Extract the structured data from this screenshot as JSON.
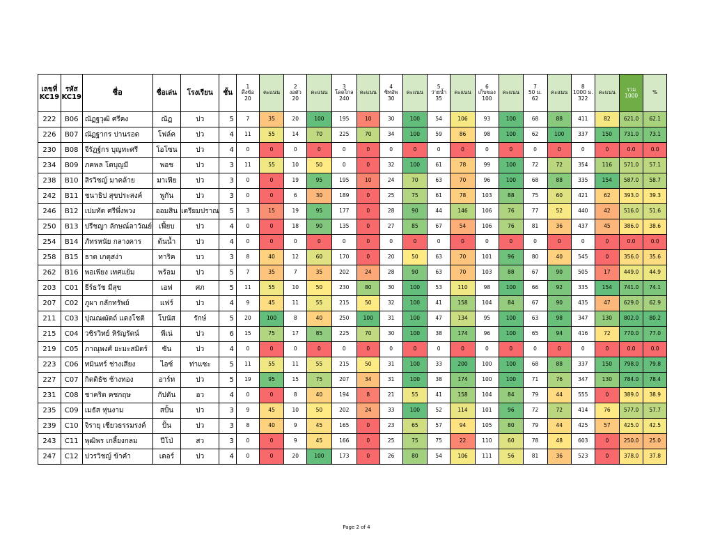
{
  "header": {
    "id": [
      "เลขที่",
      "KC19"
    ],
    "code": [
      "รหัส",
      "KC19"
    ],
    "name": "ชื่อ",
    "nickname": "ชื่อเล่น",
    "school": "โรงเรียน",
    "grade": "ชั้น",
    "events": [
      {
        "no": "1",
        "name": "ดึงข้อ",
        "max": "20"
      },
      {
        "no": "2",
        "name": "งอตัว",
        "max": "20"
      },
      {
        "no": "3",
        "name": "โดดไกล",
        "max": "240"
      },
      {
        "no": "4",
        "name": "ซิทอัพ",
        "max": "30"
      },
      {
        "no": "5",
        "name": "ว่ายน้ำ",
        "max": "35"
      },
      {
        "no": "6",
        "name": "เก็บของ",
        "max": "100"
      },
      {
        "no": "7",
        "name": "50 ม.",
        "max": "62"
      },
      {
        "no": "8",
        "name": "1000 ม.",
        "max": "322"
      }
    ],
    "score_label": "คะแนน",
    "total": [
      "รวม",
      "1000"
    ],
    "percent": "%"
  },
  "rows": [
    {
      "id": "222",
      "code": "B06",
      "name": "ณัฏฐวุฒิ  ศรีคง",
      "nick": "ณัฏ",
      "school": "ปว",
      "grade": "5",
      "raw": [
        "7",
        "20",
        "195",
        "30",
        "54",
        "93",
        "68",
        "411"
      ],
      "scores": [
        "35",
        "100",
        "10",
        "100",
        "106",
        "100",
        "88",
        "82"
      ],
      "total": "621.0",
      "pct": "62.1"
    },
    {
      "id": "226",
      "code": "B07",
      "name": "ณัฏฐากร  ปานรอด",
      "nick": "โฟล์ค",
      "school": "ปว",
      "grade": "4",
      "raw": [
        "11",
        "14",
        "225",
        "34",
        "59",
        "98",
        "62",
        "337"
      ],
      "scores": [
        "55",
        "70",
        "70",
        "100",
        "86",
        "100",
        "100",
        "150"
      ],
      "total": "731.0",
      "pct": "73.1"
    },
    {
      "id": "230",
      "code": "B08",
      "name": "จีรัฏฐ์กร  บุญทะศรี",
      "nick": "โอโซน",
      "school": "ปว",
      "grade": "4",
      "raw": [
        "0",
        "0",
        "0",
        "0",
        "0",
        "0",
        "0",
        "0"
      ],
      "scores": [
        "0",
        "0",
        "0",
        "0",
        "0",
        "0",
        "0",
        "0"
      ],
      "total": "0.0",
      "pct": "0.0"
    },
    {
      "id": "234",
      "code": "B09",
      "name": "ภคพล  โตบุญมี",
      "nick": "พอช",
      "school": "ปว",
      "grade": "3",
      "raw": [
        "11",
        "10",
        "0",
        "32",
        "61",
        "99",
        "72",
        "354"
      ],
      "scores": [
        "55",
        "50",
        "0",
        "100",
        "78",
        "100",
        "72",
        "116"
      ],
      "total": "571.0",
      "pct": "57.1"
    },
    {
      "id": "238",
      "code": "B10",
      "name": "สิรวิชญ์  มาคล้าย",
      "nick": "มาเฟีย",
      "school": "ปว",
      "grade": "3",
      "raw": [
        "0",
        "19",
        "195",
        "24",
        "63",
        "96",
        "68",
        "335"
      ],
      "scores": [
        "0",
        "95",
        "10",
        "70",
        "70",
        "100",
        "88",
        "154"
      ],
      "total": "587.0",
      "pct": "58.7"
    },
    {
      "id": "242",
      "code": "B11",
      "name": "ชนาธิป  สุขประสงค์",
      "nick": "พูกัน",
      "school": "ปว",
      "grade": "3",
      "raw": [
        "0",
        "6",
        "189",
        "25",
        "61",
        "103",
        "75",
        "421"
      ],
      "scores": [
        "0",
        "30",
        "0",
        "75",
        "78",
        "88",
        "60",
        "62"
      ],
      "total": "393.0",
      "pct": "39.3"
    },
    {
      "id": "246",
      "code": "B12",
      "name": "เปมทัต  ศรีพึ่งพวง",
      "nick": "ออมสิน",
      "school": "เตรียมปราณ",
      "grade": "5",
      "raw": [
        "3",
        "19",
        "177",
        "28",
        "44",
        "106",
        "77",
        "440"
      ],
      "scores": [
        "15",
        "95",
        "0",
        "90",
        "146",
        "76",
        "52",
        "42"
      ],
      "total": "516.0",
      "pct": "51.6"
    },
    {
      "id": "250",
      "code": "B13",
      "name": "ปรีชญา  ลักษณ์ลาวัณย์",
      "nick": "เฟี้ยบ",
      "school": "ปว",
      "grade": "4",
      "raw": [
        "0",
        "18",
        "135",
        "27",
        "67",
        "106",
        "81",
        "437"
      ],
      "scores": [
        "0",
        "90",
        "0",
        "85",
        "54",
        "76",
        "36",
        "45"
      ],
      "total": "386.0",
      "pct": "38.6"
    },
    {
      "id": "254",
      "code": "B14",
      "name": "ภัทรหนัย  กลางคาร",
      "nick": "ต้นน้ำ",
      "school": "ปว",
      "grade": "4",
      "raw": [
        "0",
        "0",
        "0",
        "0",
        "0",
        "0",
        "0",
        "0"
      ],
      "scores": [
        "0",
        "0",
        "0",
        "0",
        "0",
        "0",
        "0",
        "0"
      ],
      "total": "0.0",
      "pct": "0.0"
    },
    {
      "id": "258",
      "code": "B15",
      "name": "ธาต  เกตุสง่า",
      "nick": "ทาริค",
      "school": "บว",
      "grade": "3",
      "raw": [
        "8",
        "12",
        "170",
        "20",
        "63",
        "101",
        "80",
        "545"
      ],
      "scores": [
        "40",
        "60",
        "0",
        "50",
        "70",
        "96",
        "40",
        "0"
      ],
      "total": "356.0",
      "pct": "35.6"
    },
    {
      "id": "262",
      "code": "B16",
      "name": "พอเพียง  เทศแย้ม",
      "nick": "พร้อม",
      "school": "ปว",
      "grade": "5",
      "raw": [
        "7",
        "7",
        "202",
        "28",
        "63",
        "103",
        "67",
        "505"
      ],
      "scores": [
        "35",
        "35",
        "24",
        "90",
        "70",
        "88",
        "90",
        "17"
      ],
      "total": "449.0",
      "pct": "44.9"
    },
    {
      "id": "203",
      "code": "C01",
      "name": "ธีร์ธวัช  มีสุข",
      "nick": "เอฟ",
      "school": "ศภ",
      "grade": "5",
      "raw": [
        "11",
        "10",
        "230",
        "30",
        "53",
        "98",
        "66",
        "335"
      ],
      "scores": [
        "55",
        "50",
        "80",
        "100",
        "110",
        "100",
        "92",
        "154"
      ],
      "total": "741.0",
      "pct": "74.1"
    },
    {
      "id": "207",
      "code": "C02",
      "name": "ภูผา  กลักทรัพย์",
      "nick": "แฟร์",
      "school": "ปว",
      "grade": "4",
      "raw": [
        "9",
        "11",
        "215",
        "32",
        "41",
        "104",
        "67",
        "435"
      ],
      "scores": [
        "45",
        "55",
        "50",
        "100",
        "158",
        "84",
        "90",
        "47"
      ],
      "total": "629.0",
      "pct": "62.9"
    },
    {
      "id": "211",
      "code": "C03",
      "name": "ปุณณฒัตถ์  แดงโชติ",
      "nick": "โบนัส",
      "school": "รักษ์",
      "grade": "5",
      "raw": [
        "20",
        "8",
        "250",
        "31",
        "47",
        "95",
        "63",
        "347"
      ],
      "scores": [
        "100",
        "40",
        "100",
        "100",
        "134",
        "100",
        "98",
        "130"
      ],
      "total": "802.0",
      "pct": "80.2"
    },
    {
      "id": "215",
      "code": "C04",
      "name": "วชิรวิทย์  หิรัญรัตน์",
      "nick": "พีเน่",
      "school": "ปว",
      "grade": "6",
      "raw": [
        "15",
        "17",
        "225",
        "30",
        "38",
        "96",
        "65",
        "416"
      ],
      "scores": [
        "75",
        "85",
        "70",
        "100",
        "174",
        "100",
        "94",
        "72"
      ],
      "total": "770.0",
      "pct": "77.0"
    },
    {
      "id": "219",
      "code": "C05",
      "name": "ภาณุพงศ์  ยะมะสมิตร์",
      "nick": "ซัน",
      "school": "ปว",
      "grade": "4",
      "raw": [
        "0",
        "0",
        "0",
        "0",
        "0",
        "0",
        "0",
        "0"
      ],
      "scores": [
        "0",
        "0",
        "0",
        "0",
        "0",
        "0",
        "0",
        "0"
      ],
      "total": "0.0",
      "pct": "0.0"
    },
    {
      "id": "223",
      "code": "C06",
      "name": "ทมินทร์  ช่างเสียง",
      "nick": "ไอซ์",
      "school": "ท่าแซะ",
      "grade": "5",
      "raw": [
        "11",
        "11",
        "215",
        "31",
        "33",
        "100",
        "68",
        "337"
      ],
      "scores": [
        "55",
        "55",
        "50",
        "100",
        "200",
        "100",
        "88",
        "150"
      ],
      "total": "798.0",
      "pct": "79.8"
    },
    {
      "id": "227",
      "code": "C07",
      "name": "กิตติธัช  ช้างทอง",
      "nick": "อาร์ท",
      "school": "ปว",
      "grade": "5",
      "raw": [
        "19",
        "15",
        "207",
        "31",
        "38",
        "100",
        "71",
        "347"
      ],
      "scores": [
        "95",
        "75",
        "34",
        "100",
        "174",
        "100",
        "76",
        "130"
      ],
      "total": "784.0",
      "pct": "78.4"
    },
    {
      "id": "231",
      "code": "C08",
      "name": "ชาคริต  คชกฤษ",
      "nick": "กัปตัน",
      "school": "อว",
      "grade": "4",
      "raw": [
        "0",
        "8",
        "194",
        "21",
        "41",
        "104",
        "79",
        "555"
      ],
      "scores": [
        "0",
        "40",
        "8",
        "55",
        "158",
        "84",
        "44",
        "0"
      ],
      "total": "389.0",
      "pct": "38.9"
    },
    {
      "id": "235",
      "code": "C09",
      "name": "เมธัส  หุ่นงาม",
      "nick": "สปั้น",
      "school": "ปว",
      "grade": "3",
      "raw": [
        "9",
        "10",
        "202",
        "33",
        "52",
        "101",
        "72",
        "414"
      ],
      "scores": [
        "45",
        "50",
        "24",
        "100",
        "114",
        "96",
        "72",
        "76"
      ],
      "total": "577.0",
      "pct": "57.7"
    },
    {
      "id": "239",
      "code": "C10",
      "name": "จิรายุ  เชียวธรรมรงค์",
      "nick": "ปั้น",
      "school": "ปว",
      "grade": "3",
      "raw": [
        "8",
        "9",
        "165",
        "23",
        "57",
        "105",
        "79",
        "425"
      ],
      "scores": [
        "40",
        "45",
        "0",
        "65",
        "94",
        "80",
        "44",
        "57"
      ],
      "total": "425.0",
      "pct": "42.5"
    },
    {
      "id": "243",
      "code": "C11",
      "name": "พุฒิพร  เกลี้ยงกลม",
      "nick": "ปีโป่",
      "school": "สว",
      "grade": "3",
      "raw": [
        "0",
        "9",
        "166",
        "25",
        "75",
        "110",
        "78",
        "603"
      ],
      "scores": [
        "0",
        "45",
        "0",
        "75",
        "22",
        "60",
        "48",
        "0"
      ],
      "total": "250.0",
      "pct": "25.0"
    },
    {
      "id": "247",
      "code": "C12",
      "name": "ปวรวิชญ์  ข้าคำ",
      "nick": "เตอร์",
      "school": "ปว",
      "grade": "4",
      "raw": [
        "0",
        "20",
        "173",
        "26",
        "54",
        "111",
        "81",
        "523"
      ],
      "scores": [
        "0",
        "100",
        "0",
        "80",
        "106",
        "56",
        "36",
        "0"
      ],
      "total": "378.0",
      "pct": "37.8"
    }
  ],
  "colors": {
    "red": "#f8696b",
    "yellow": "#ffeb84",
    "green": "#63be7b"
  },
  "footer": "Page 2 of 4"
}
